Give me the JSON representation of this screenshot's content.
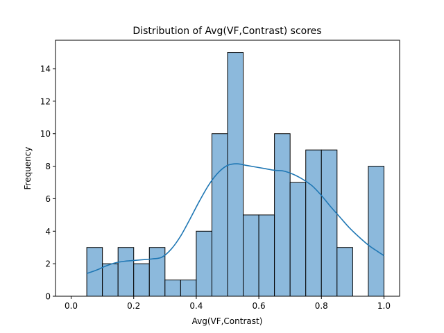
{
  "chart_data": {
    "type": "bar",
    "subtype": "histogram-with-kde",
    "title": "Distribution of Avg(VF,Contrast) scores",
    "xlabel": "Avg(VF,Contrast)",
    "ylabel": "Frequency",
    "xlim": [
      -0.05,
      1.05
    ],
    "ylim": [
      0,
      15.75
    ],
    "xticks": [
      0.0,
      0.2,
      0.4,
      0.6,
      0.8,
      1.0
    ],
    "xtick_labels": [
      "0.0",
      "0.2",
      "0.4",
      "0.6",
      "0.8",
      "1.0"
    ],
    "yticks": [
      0,
      2,
      4,
      6,
      8,
      10,
      12,
      14
    ],
    "ytick_labels": [
      "0",
      "2",
      "4",
      "6",
      "8",
      "10",
      "12",
      "14"
    ],
    "grid": false,
    "bar_color": "#8cb9dc",
    "bar_edge_color": "#000000",
    "kde_color": "#1f77b4",
    "bins": [
      {
        "start": 0.05,
        "end": 0.1,
        "count": 3
      },
      {
        "start": 0.1,
        "end": 0.15,
        "count": 2
      },
      {
        "start": 0.15,
        "end": 0.2,
        "count": 3
      },
      {
        "start": 0.2,
        "end": 0.25,
        "count": 2
      },
      {
        "start": 0.25,
        "end": 0.3,
        "count": 3
      },
      {
        "start": 0.3,
        "end": 0.35,
        "count": 1
      },
      {
        "start": 0.35,
        "end": 0.4,
        "count": 1
      },
      {
        "start": 0.4,
        "end": 0.45,
        "count": 4
      },
      {
        "start": 0.45,
        "end": 0.5,
        "count": 10
      },
      {
        "start": 0.5,
        "end": 0.55,
        "count": 15
      },
      {
        "start": 0.55,
        "end": 0.6,
        "count": 5
      },
      {
        "start": 0.6,
        "end": 0.65,
        "count": 5
      },
      {
        "start": 0.65,
        "end": 0.7,
        "count": 10
      },
      {
        "start": 0.7,
        "end": 0.75,
        "count": 7
      },
      {
        "start": 0.75,
        "end": 0.8,
        "count": 9
      },
      {
        "start": 0.8,
        "end": 0.85,
        "count": 9
      },
      {
        "start": 0.85,
        "end": 0.9,
        "count": 3
      },
      {
        "start": 0.9,
        "end": 0.95,
        "count": 0
      },
      {
        "start": 0.95,
        "end": 1.0,
        "count": 8
      }
    ],
    "kde": {
      "x": [
        0.05,
        0.08,
        0.11,
        0.14,
        0.17,
        0.2,
        0.23,
        0.26,
        0.29,
        0.32,
        0.35,
        0.38,
        0.41,
        0.44,
        0.47,
        0.5,
        0.53,
        0.56,
        0.59,
        0.62,
        0.65,
        0.68,
        0.71,
        0.74,
        0.77,
        0.8,
        0.83,
        0.86,
        0.89,
        0.92,
        0.95,
        0.98,
        1.0
      ],
      "y": [
        1.4,
        1.6,
        1.85,
        2.05,
        2.15,
        2.2,
        2.25,
        2.3,
        2.4,
        2.9,
        3.7,
        4.75,
        5.85,
        6.85,
        7.6,
        8.05,
        8.15,
        8.05,
        7.95,
        7.85,
        7.75,
        7.7,
        7.5,
        7.2,
        6.8,
        6.2,
        5.5,
        4.85,
        4.2,
        3.65,
        3.15,
        2.75,
        2.5
      ]
    }
  }
}
